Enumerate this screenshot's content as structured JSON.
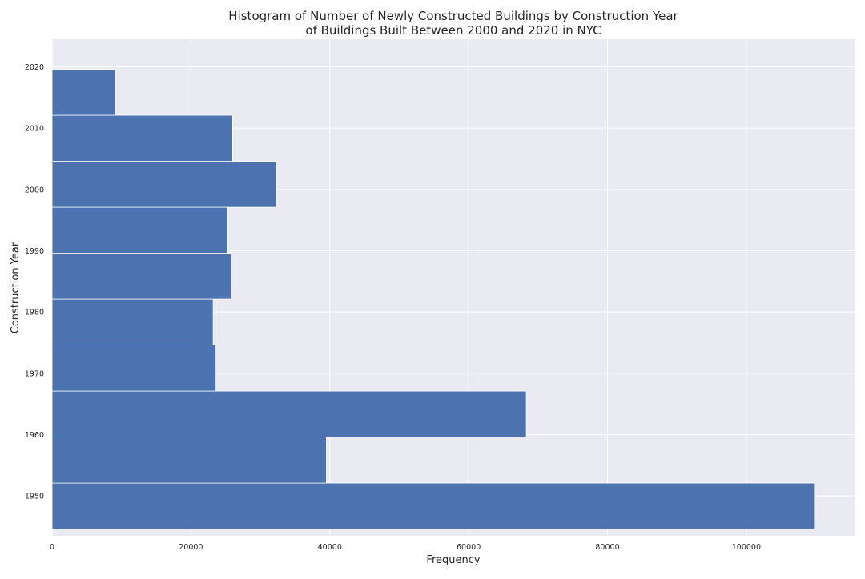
{
  "chart_data": {
    "type": "bar",
    "orientation": "horizontal",
    "title_lines": [
      "Histogram of Number of Newly Constructed Buildings by Construction Year",
      "of Buildings Built Between 2000 and 2020 in NYC"
    ],
    "xlabel": "Frequency",
    "ylabel": "Construction Year",
    "xlim": [
      0,
      115700
    ],
    "ylim": [
      1943.5,
      2024.5
    ],
    "xticks": [
      0,
      20000,
      40000,
      60000,
      80000,
      100000
    ],
    "yticks": [
      1950,
      1960,
      1970,
      1980,
      1990,
      2000,
      2010,
      2020
    ],
    "bin_edges": [
      1944.6,
      1952.1,
      1959.6,
      1967.1,
      1974.6,
      1982.1,
      1989.6,
      1997.1,
      2004.6,
      2012.1,
      2019.6
    ],
    "values": [
      109800,
      39500,
      68300,
      23600,
      23200,
      25800,
      25300,
      32300,
      26000,
      9100
    ],
    "bar_color": "#4c72b0",
    "background_color": "#eaeaf2",
    "grid_color": "#ffffff",
    "grid": true,
    "legend": "none"
  }
}
